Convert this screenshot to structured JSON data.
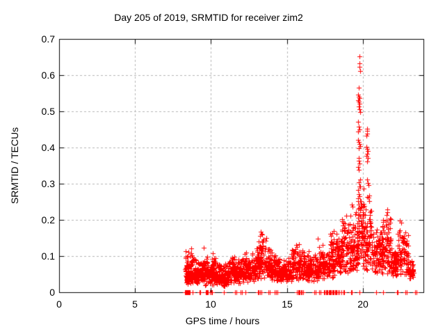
{
  "page": {
    "title": "Day 205 of 2019, SRMTID for receiver zim2"
  },
  "chart_data": {
    "type": "scatter",
    "title": "Day 205 of 2019, SRMTID for receiver zim2",
    "xlabel": "GPS time / hours",
    "ylabel": "SRMTID / TECUs",
    "xlim": [
      0,
      24
    ],
    "ylim": [
      0,
      0.7
    ],
    "xticks": [
      0,
      5,
      10,
      15,
      20
    ],
    "yticks": [
      0,
      0.1,
      0.2,
      0.3,
      0.4,
      0.5,
      0.6,
      0.7
    ],
    "xtick_labels": [
      "0",
      "5",
      "10",
      "15",
      "20"
    ],
    "ytick_labels": [
      "0",
      "0.1",
      "0.2",
      "0.3",
      "0.4",
      "0.5",
      "0.6",
      "0.7"
    ],
    "grid": true,
    "legend": "none",
    "marker": "plus",
    "marker_color": "#ff0000",
    "grid_color": "#b4b4b4",
    "axis_color": "#000000",
    "background_color": "#ffffff",
    "series_summary": "SRMTID for receiver zim2: dense band 0.02-0.12 TECUs from 8.3h to 23.3h, bump to ~0.17 near 13.3h, rising activity after 18h, large spike to 0.65 near 19.8h, secondary cluster ~0.45 near 20.3h, smaller peaks ~0.23 near 21.6h and ~0.2 near 22.5h; scattered exact-zero values along the time axis",
    "seed": 20519,
    "band_segments_format": [
      "hour_start",
      "hour_end",
      "value_low",
      "value_high",
      "n_points"
    ],
    "band_segments": [
      [
        8.3,
        8.85,
        0.02,
        0.125,
        100
      ],
      [
        8.85,
        9.6,
        0.022,
        0.1,
        110
      ],
      [
        9.6,
        10.4,
        0.018,
        0.112,
        120
      ],
      [
        10.4,
        11.2,
        0.015,
        0.088,
        120
      ],
      [
        11.2,
        12.2,
        0.022,
        0.108,
        140
      ],
      [
        12.2,
        12.95,
        0.028,
        0.11,
        110
      ],
      [
        12.95,
        13.65,
        0.035,
        0.165,
        110
      ],
      [
        13.65,
        14.35,
        0.03,
        0.128,
        100
      ],
      [
        14.35,
        15.3,
        0.028,
        0.1,
        130
      ],
      [
        15.3,
        16.2,
        0.032,
        0.135,
        120
      ],
      [
        16.2,
        17.1,
        0.028,
        0.118,
        120
      ],
      [
        17.1,
        17.85,
        0.035,
        0.142,
        100
      ],
      [
        17.85,
        18.6,
        0.04,
        0.178,
        105
      ],
      [
        18.6,
        19.4,
        0.048,
        0.225,
        115
      ],
      [
        19.4,
        19.7,
        0.055,
        0.25,
        55
      ],
      [
        19.7,
        20.1,
        0.065,
        0.32,
        65
      ],
      [
        20.1,
        20.6,
        0.055,
        0.285,
        75
      ],
      [
        20.6,
        21.3,
        0.048,
        0.19,
        95
      ],
      [
        21.3,
        21.9,
        0.045,
        0.23,
        85
      ],
      [
        21.9,
        22.3,
        0.038,
        0.13,
        65
      ],
      [
        22.3,
        23.0,
        0.045,
        0.195,
        95
      ],
      [
        23.0,
        23.35,
        0.035,
        0.095,
        45
      ]
    ],
    "outlier_points_format": [
      "hour",
      "value"
    ],
    "outlier_points": [
      [
        19.77,
        0.652
      ],
      [
        19.8,
        0.632
      ],
      [
        19.79,
        0.623
      ],
      [
        19.81,
        0.612
      ],
      [
        19.75,
        0.566
      ],
      [
        19.71,
        0.547
      ],
      [
        19.76,
        0.541
      ],
      [
        19.8,
        0.537
      ],
      [
        19.69,
        0.53
      ],
      [
        19.74,
        0.526
      ],
      [
        19.78,
        0.521
      ],
      [
        19.72,
        0.513
      ],
      [
        19.77,
        0.506
      ],
      [
        19.81,
        0.498
      ],
      [
        19.68,
        0.472
      ],
      [
        19.74,
        0.458
      ],
      [
        19.79,
        0.45
      ],
      [
        19.71,
        0.444
      ],
      [
        19.7,
        0.421
      ],
      [
        19.75,
        0.416
      ],
      [
        19.79,
        0.41
      ],
      [
        19.83,
        0.404
      ],
      [
        19.76,
        0.399
      ],
      [
        20.27,
        0.452
      ],
      [
        20.31,
        0.447
      ],
      [
        20.29,
        0.438
      ],
      [
        20.25,
        0.433
      ],
      [
        20.24,
        0.401
      ],
      [
        20.28,
        0.396
      ],
      [
        20.32,
        0.391
      ],
      [
        20.3,
        0.383
      ],
      [
        20.26,
        0.376
      ],
      [
        20.34,
        0.371
      ],
      [
        20.29,
        0.362
      ],
      [
        19.72,
        0.372
      ],
      [
        19.76,
        0.363
      ],
      [
        19.8,
        0.356
      ],
      [
        19.7,
        0.347
      ],
      [
        19.74,
        0.338
      ],
      [
        20.28,
        0.312
      ],
      [
        20.32,
        0.302
      ],
      [
        20.36,
        0.296
      ],
      [
        19.73,
        0.303
      ],
      [
        19.77,
        0.292
      ],
      [
        19.71,
        0.282
      ],
      [
        19.75,
        0.272
      ],
      [
        19.79,
        0.266
      ],
      [
        19.69,
        0.252
      ],
      [
        19.74,
        0.242
      ],
      [
        19.78,
        0.232
      ],
      [
        9.53,
        0.124
      ],
      [
        13.27,
        0.168
      ],
      [
        13.32,
        0.161
      ],
      [
        13.22,
        0.156
      ],
      [
        17.02,
        0.148
      ],
      [
        19.3,
        0.243
      ],
      [
        19.34,
        0.236
      ],
      [
        21.6,
        0.228
      ],
      [
        21.64,
        0.221
      ],
      [
        21.56,
        0.214
      ],
      [
        22.46,
        0.199
      ],
      [
        22.52,
        0.193
      ],
      [
        18.92,
        0.212
      ]
    ],
    "zero_point_hours": [
      8.3,
      8.33,
      8.36,
      8.39,
      8.42,
      8.45,
      8.48,
      8.51,
      8.54,
      8.58,
      8.62,
      8.8,
      9.26,
      9.31,
      9.67,
      9.72,
      9.77,
      9.82,
      9.95,
      10.02,
      10.08,
      10.85,
      11.6,
      11.66,
      11.97,
      12.03,
      12.28,
      13.1,
      13.16,
      13.25,
      13.31,
      13.79,
      13.86,
      14.21,
      14.28,
      14.36,
      15.68,
      15.74,
      15.8,
      15.87,
      15.93,
      16.0,
      16.07,
      16.83,
      16.9,
      17.14,
      17.2,
      17.45,
      17.51,
      17.57,
      17.63,
      17.69,
      17.75,
      17.81,
      17.87,
      17.93,
      17.99,
      18.05,
      18.11,
      18.17,
      18.23,
      18.29,
      18.35,
      18.47,
      18.6,
      18.73,
      18.8,
      19.24,
      19.3,
      19.77,
      20.88,
      21.34,
      22.26,
      22.32,
      22.82,
      22.89,
      23.45,
      23.52
    ]
  },
  "layout_note": "gnuplot-style PNG chart, no interactive controls visible"
}
